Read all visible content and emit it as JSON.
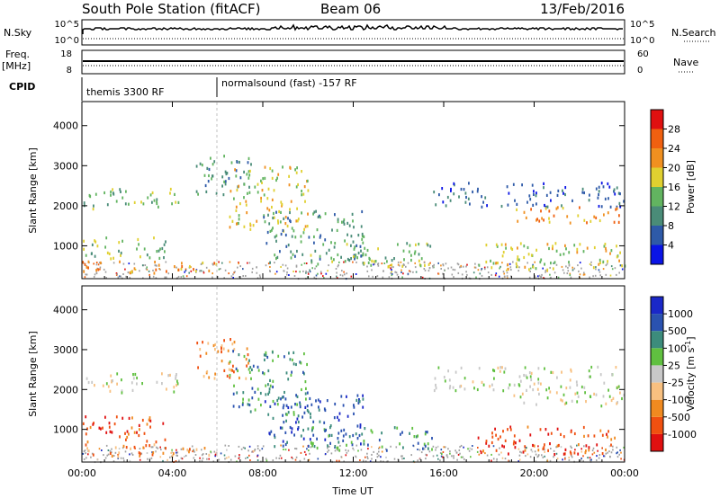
{
  "header": {
    "station": "South Pole Station (fitACF)",
    "beam": "Beam 06",
    "date": "13/Feb/2016"
  },
  "summary_panels": {
    "nsky": {
      "label": "N.Sky",
      "ticks": [
        "10^5",
        "10^0"
      ]
    },
    "nsearch": {
      "label": "N.Search",
      "ticks": [
        "10^5",
        "10^0"
      ]
    },
    "freq": {
      "label_line1": "Freq.",
      "label_line2": "[MHz]",
      "ticks": [
        "18",
        "8"
      ]
    },
    "nave": {
      "label": "Nave",
      "ticks": [
        "60",
        "0"
      ]
    },
    "cpid": {
      "label": "CPID",
      "segments": [
        {
          "start_hour": 0,
          "text": "themis 3300 RF"
        },
        {
          "start_hour": 6,
          "text": "normalsound (fast) -157 RF"
        }
      ]
    }
  },
  "colors": {
    "power": [
      "#0a14e6",
      "#2e5aa8",
      "#4a8c78",
      "#62b460",
      "#e0d030",
      "#f09020",
      "#f06010",
      "#e01010"
    ],
    "velocity": [
      "#e01010",
      "#f05010",
      "#f08a20",
      "#f8c080",
      "#c8c8c8",
      "#60c040",
      "#3c8c7c",
      "#2a52b0",
      "#1a28c8"
    ],
    "scatter_floor": "#a0a0a0"
  },
  "chart_data": [
    {
      "type": "heatmap",
      "name": "power",
      "xlabel": "",
      "ylabel": "Slant Range [km]",
      "xlim": [
        0,
        24
      ],
      "ylim": [
        180,
        4600
      ],
      "x_ticks": [
        0,
        4,
        8,
        12,
        16,
        20,
        24
      ],
      "y_ticks": [
        1000,
        2000,
        3000,
        4000
      ],
      "y_tick_labels": [
        "1000",
        "2000",
        "3000",
        "4000"
      ],
      "colorbar": {
        "title": "Power [dB]",
        "ticks": [
          "4",
          "8",
          "12",
          "16",
          "20",
          "24",
          "28"
        ]
      },
      "regions": [
        {
          "h0": 0.0,
          "h1": 4.3,
          "r0": 1950,
          "r1": 2450,
          "level": 3
        },
        {
          "h0": 0.0,
          "h1": 3.8,
          "r0": 700,
          "r1": 1250,
          "level": 3
        },
        {
          "h0": 0.0,
          "h1": 6.0,
          "r0": 350,
          "r1": 650,
          "level": 5
        },
        {
          "h0": 5.0,
          "h1": 7.5,
          "r0": 2300,
          "r1": 3300,
          "level": 2
        },
        {
          "h0": 6.5,
          "h1": 10.0,
          "r0": 1400,
          "r1": 3000,
          "level": 4
        },
        {
          "h0": 8.0,
          "h1": 12.5,
          "r0": 600,
          "r1": 1900,
          "level": 2
        },
        {
          "h0": 10.0,
          "h1": 15.5,
          "r0": 500,
          "r1": 1100,
          "level": 3
        },
        {
          "h0": 15.5,
          "h1": 24.0,
          "r0": 2000,
          "r1": 2600,
          "level": 1
        },
        {
          "h0": 19.0,
          "h1": 24.0,
          "r0": 1600,
          "r1": 2000,
          "level": 5
        },
        {
          "h0": 17.5,
          "h1": 24.0,
          "r0": 400,
          "r1": 1100,
          "level": 4
        }
      ]
    },
    {
      "type": "heatmap",
      "name": "velocity",
      "xlabel": "Time UT",
      "ylabel": "Slant Range [km]",
      "xlim": [
        0,
        24
      ],
      "ylim": [
        180,
        4600
      ],
      "x_ticks": [
        0,
        4,
        8,
        12,
        16,
        20,
        24
      ],
      "x_tick_labels": [
        "00:00",
        "04:00",
        "08:00",
        "12:00",
        "16:00",
        "20:00",
        "00:00"
      ],
      "y_ticks": [
        1000,
        2000,
        3000,
        4000
      ],
      "y_tick_labels": [
        "1000",
        "2000",
        "3000",
        "4000"
      ],
      "colorbar": {
        "title": "Velocity [m s",
        "title_sup": "-1",
        "title_end": "]",
        "ticks": [
          "-1000",
          "-500",
          "-100",
          "-25",
          "25",
          "100",
          "500",
          "1000"
        ]
      },
      "regions": [
        {
          "h0": 0.0,
          "h1": 4.3,
          "r0": 1950,
          "r1": 2450,
          "level": 4
        },
        {
          "h0": 0.0,
          "h1": 3.8,
          "r0": 700,
          "r1": 1350,
          "level": 1
        },
        {
          "h0": 0.0,
          "h1": 6.0,
          "r0": 350,
          "r1": 650,
          "level": 2
        },
        {
          "h0": 5.0,
          "h1": 7.5,
          "r0": 2300,
          "r1": 3300,
          "level": 2
        },
        {
          "h0": 6.5,
          "h1": 10.0,
          "r0": 1400,
          "r1": 3000,
          "level": 6
        },
        {
          "h0": 8.0,
          "h1": 12.5,
          "r0": 600,
          "r1": 1900,
          "level": 7
        },
        {
          "h0": 10.0,
          "h1": 15.5,
          "r0": 500,
          "r1": 1100,
          "level": 6
        },
        {
          "h0": 15.5,
          "h1": 24.0,
          "r0": 2000,
          "r1": 2600,
          "level": 4
        },
        {
          "h0": 19.0,
          "h1": 24.0,
          "r0": 1600,
          "r1": 2000,
          "level": 4
        },
        {
          "h0": 17.5,
          "h1": 24.0,
          "r0": 400,
          "r1": 1100,
          "level": 1
        }
      ]
    }
  ]
}
